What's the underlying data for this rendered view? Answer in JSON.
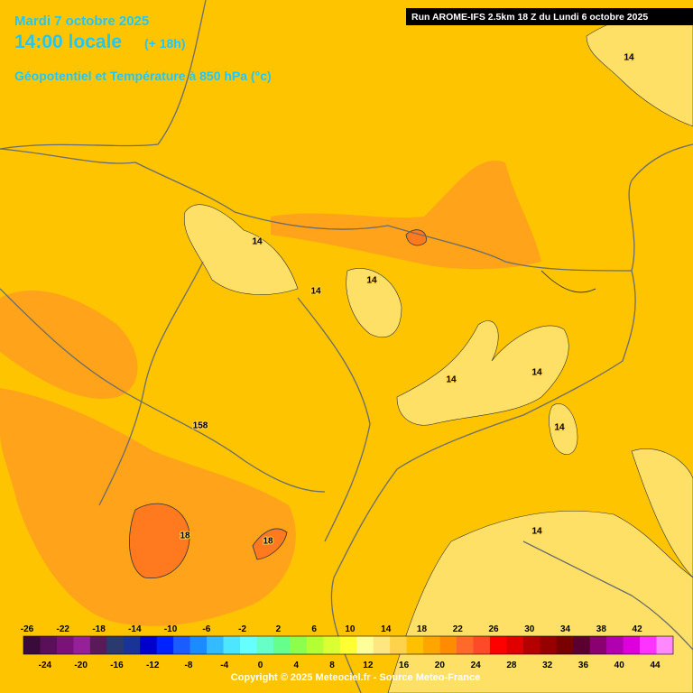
{
  "header": {
    "date": "Mardi 7 octobre 2025",
    "time": "14:00 locale",
    "offset": "(+ 18h)",
    "field": "Géopotentiel et Température à 850 hPa (°c)",
    "run": "Run AROME-IFS 2.5km 18 Z du Lundi 6 octobre 2025"
  },
  "map": {
    "contour_labels": [
      14,
      14,
      14,
      14,
      14,
      14,
      14,
      14,
      158,
      18,
      18
    ]
  },
  "legend": {
    "ticks_top": [
      -26,
      -22,
      -18,
      -14,
      -10,
      -6,
      -2,
      2,
      6,
      10,
      14,
      18,
      22,
      26,
      30,
      34,
      38,
      42
    ],
    "ticks_bottom": [
      -24,
      -20,
      -16,
      -12,
      -8,
      -4,
      0,
      4,
      8,
      12,
      16,
      20,
      24,
      28,
      32,
      36,
      40,
      44
    ],
    "colors": [
      "#3a0a3a",
      "#5a0f5a",
      "#7a127a",
      "#96209a",
      "#5a1a5a",
      "#2a3a6e",
      "#1a3399",
      "#0000cc",
      "#0022ff",
      "#1a5cff",
      "#1a8cff",
      "#33bbff",
      "#4de6ff",
      "#66ffff",
      "#66ffc8",
      "#66ff8c",
      "#8cff4d",
      "#b4ff33",
      "#dcff33",
      "#ffff33",
      "#ffff99",
      "#ffe680",
      "#ffd24d",
      "#ffc000",
      "#ffa500",
      "#ff8c00",
      "#ff6a2a",
      "#ff4a2a",
      "#ff0000",
      "#e00000",
      "#b40000",
      "#960000",
      "#780000",
      "#5a0030",
      "#8a0070",
      "#b000b0",
      "#dd00dd",
      "#ff33ff",
      "#ff88ff"
    ]
  },
  "footer": {
    "copyright": "Copyright © 2025 Meteociel.fr - Source Meteo-France"
  }
}
